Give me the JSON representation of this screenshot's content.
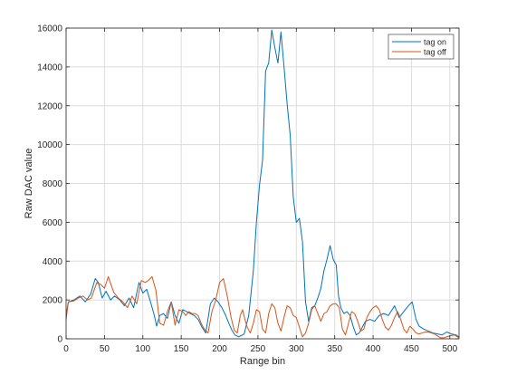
{
  "colors": {
    "tag_on": "#0072BD",
    "tag_off": "#D95319",
    "grid": "#dcdcdc",
    "axis": "#262626"
  },
  "chart_data": {
    "type": "line",
    "xlabel": "Range bin",
    "ylabel": "Raw DAC value",
    "xlim": [
      0,
      512
    ],
    "ylim": [
      0,
      16000
    ],
    "xticks": [
      0,
      50,
      100,
      150,
      200,
      250,
      300,
      350,
      400,
      450,
      500
    ],
    "yticks": [
      0,
      2000,
      4000,
      6000,
      8000,
      10000,
      12000,
      14000,
      16000
    ],
    "grid": true,
    "legend_position": "top-right",
    "series": [
      {
        "name": "tag on",
        "color": "#0072BD",
        "points": [
          [
            0,
            1200
          ],
          [
            3,
            1900
          ],
          [
            10,
            2000
          ],
          [
            18,
            2200
          ],
          [
            25,
            1900
          ],
          [
            32,
            2300
          ],
          [
            38,
            3100
          ],
          [
            42,
            2900
          ],
          [
            47,
            2100
          ],
          [
            52,
            2450
          ],
          [
            58,
            2000
          ],
          [
            63,
            2200
          ],
          [
            70,
            2000
          ],
          [
            76,
            1700
          ],
          [
            82,
            2100
          ],
          [
            88,
            1600
          ],
          [
            95,
            2900
          ],
          [
            100,
            2350
          ],
          [
            105,
            2550
          ],
          [
            110,
            1900
          ],
          [
            115,
            1200
          ],
          [
            118,
            650
          ],
          [
            122,
            1200
          ],
          [
            127,
            1300
          ],
          [
            132,
            1050
          ],
          [
            137,
            1900
          ],
          [
            142,
            1200
          ],
          [
            147,
            800
          ],
          [
            152,
            1500
          ],
          [
            157,
            1400
          ],
          [
            162,
            1300
          ],
          [
            167,
            1200
          ],
          [
            172,
            1000
          ],
          [
            177,
            600
          ],
          [
            182,
            300
          ],
          [
            188,
            1800
          ],
          [
            193,
            2100
          ],
          [
            198,
            1900
          ],
          [
            203,
            1600
          ],
          [
            208,
            1200
          ],
          [
            212,
            800
          ],
          [
            216,
            450
          ],
          [
            220,
            200
          ],
          [
            225,
            100
          ],
          [
            232,
            250
          ],
          [
            238,
            1200
          ],
          [
            244,
            3500
          ],
          [
            248,
            6000
          ],
          [
            252,
            7900
          ],
          [
            256,
            9200
          ],
          [
            260,
            13800
          ],
          [
            264,
            14200
          ],
          [
            268,
            15900
          ],
          [
            272,
            15000
          ],
          [
            276,
            14200
          ],
          [
            280,
            15800
          ],
          [
            284,
            14000
          ],
          [
            288,
            12100
          ],
          [
            292,
            10500
          ],
          [
            296,
            7300
          ],
          [
            300,
            6000
          ],
          [
            304,
            6200
          ],
          [
            308,
            5000
          ],
          [
            312,
            1900
          ],
          [
            316,
            900
          ],
          [
            320,
            1600
          ],
          [
            324,
            1700
          ],
          [
            328,
            2100
          ],
          [
            332,
            2600
          ],
          [
            336,
            3500
          ],
          [
            340,
            4100
          ],
          [
            344,
            4800
          ],
          [
            348,
            4100
          ],
          [
            352,
            3800
          ],
          [
            355,
            2200
          ],
          [
            358,
            1600
          ],
          [
            362,
            1300
          ],
          [
            366,
            1400
          ],
          [
            370,
            1200
          ],
          [
            374,
            650
          ],
          [
            378,
            200
          ],
          [
            382,
            300
          ],
          [
            386,
            600
          ],
          [
            390,
            900
          ],
          [
            396,
            1000
          ],
          [
            402,
            900
          ],
          [
            408,
            1200
          ],
          [
            414,
            1300
          ],
          [
            420,
            1200
          ],
          [
            428,
            1700
          ],
          [
            434,
            1100
          ],
          [
            440,
            1400
          ],
          [
            446,
            1700
          ],
          [
            451,
            1900
          ],
          [
            456,
            1000
          ],
          [
            460,
            650
          ],
          [
            466,
            500
          ],
          [
            472,
            400
          ],
          [
            478,
            300
          ],
          [
            484,
            250
          ],
          [
            490,
            200
          ],
          [
            496,
            350
          ],
          [
            502,
            250
          ],
          [
            508,
            200
          ],
          [
            512,
            100
          ]
        ]
      },
      {
        "name": "tag off",
        "color": "#D95319",
        "points": [
          [
            0,
            1000
          ],
          [
            3,
            1900
          ],
          [
            10,
            1950
          ],
          [
            16,
            2100
          ],
          [
            22,
            2200
          ],
          [
            28,
            2000
          ],
          [
            33,
            2100
          ],
          [
            40,
            2900
          ],
          [
            45,
            2800
          ],
          [
            50,
            2600
          ],
          [
            55,
            3200
          ],
          [
            62,
            2400
          ],
          [
            68,
            2100
          ],
          [
            74,
            1900
          ],
          [
            80,
            1600
          ],
          [
            86,
            2200
          ],
          [
            92,
            1800
          ],
          [
            98,
            3000
          ],
          [
            103,
            2900
          ],
          [
            107,
            3000
          ],
          [
            112,
            3200
          ],
          [
            117,
            2500
          ],
          [
            122,
            800
          ],
          [
            127,
            700
          ],
          [
            132,
            1400
          ],
          [
            137,
            1900
          ],
          [
            142,
            700
          ],
          [
            147,
            1500
          ],
          [
            152,
            1400
          ],
          [
            156,
            1200
          ],
          [
            160,
            1400
          ],
          [
            164,
            1300
          ],
          [
            168,
            1300
          ],
          [
            172,
            1200
          ],
          [
            176,
            800
          ],
          [
            180,
            500
          ],
          [
            185,
            300
          ],
          [
            190,
            1400
          ],
          [
            195,
            2000
          ],
          [
            200,
            2900
          ],
          [
            205,
            3100
          ],
          [
            210,
            2200
          ],
          [
            215,
            1100
          ],
          [
            219,
            450
          ],
          [
            223,
            300
          ],
          [
            227,
            1200
          ],
          [
            230,
            1500
          ],
          [
            233,
            1000
          ],
          [
            236,
            600
          ],
          [
            240,
            300
          ],
          [
            244,
            800
          ],
          [
            248,
            1500
          ],
          [
            252,
            1400
          ],
          [
            256,
            500
          ],
          [
            260,
            300
          ],
          [
            264,
            1300
          ],
          [
            268,
            1800
          ],
          [
            272,
            1600
          ],
          [
            276,
            800
          ],
          [
            280,
            400
          ],
          [
            284,
            1100
          ],
          [
            288,
            1700
          ],
          [
            292,
            1600
          ],
          [
            296,
            1200
          ],
          [
            300,
            1100
          ],
          [
            304,
            600
          ],
          [
            308,
            100
          ],
          [
            312,
            300
          ],
          [
            316,
            800
          ],
          [
            320,
            1500
          ],
          [
            324,
            1700
          ],
          [
            328,
            1300
          ],
          [
            332,
            900
          ],
          [
            336,
            1300
          ],
          [
            340,
            1400
          ],
          [
            344,
            1700
          ],
          [
            348,
            1800
          ],
          [
            352,
            1800
          ],
          [
            356,
            1600
          ],
          [
            360,
            500
          ],
          [
            364,
            200
          ],
          [
            368,
            800
          ],
          [
            372,
            1400
          ],
          [
            376,
            1300
          ],
          [
            380,
            900
          ],
          [
            384,
            400
          ],
          [
            388,
            500
          ],
          [
            392,
            1100
          ],
          [
            396,
            1400
          ],
          [
            400,
            1600
          ],
          [
            404,
            1700
          ],
          [
            408,
            1500
          ],
          [
            412,
            1000
          ],
          [
            416,
            600
          ],
          [
            420,
            450
          ],
          [
            424,
            700
          ],
          [
            428,
            1100
          ],
          [
            432,
            1400
          ],
          [
            436,
            1000
          ],
          [
            440,
            500
          ],
          [
            444,
            300
          ],
          [
            448,
            650
          ],
          [
            452,
            500
          ],
          [
            456,
            300
          ],
          [
            460,
            250
          ],
          [
            464,
            300
          ],
          [
            468,
            350
          ],
          [
            472,
            350
          ],
          [
            476,
            300
          ],
          [
            480,
            250
          ],
          [
            484,
            150
          ],
          [
            488,
            50
          ],
          [
            492,
            50
          ],
          [
            496,
            100
          ],
          [
            500,
            150
          ],
          [
            506,
            200
          ],
          [
            512,
            50
          ]
        ]
      }
    ]
  }
}
